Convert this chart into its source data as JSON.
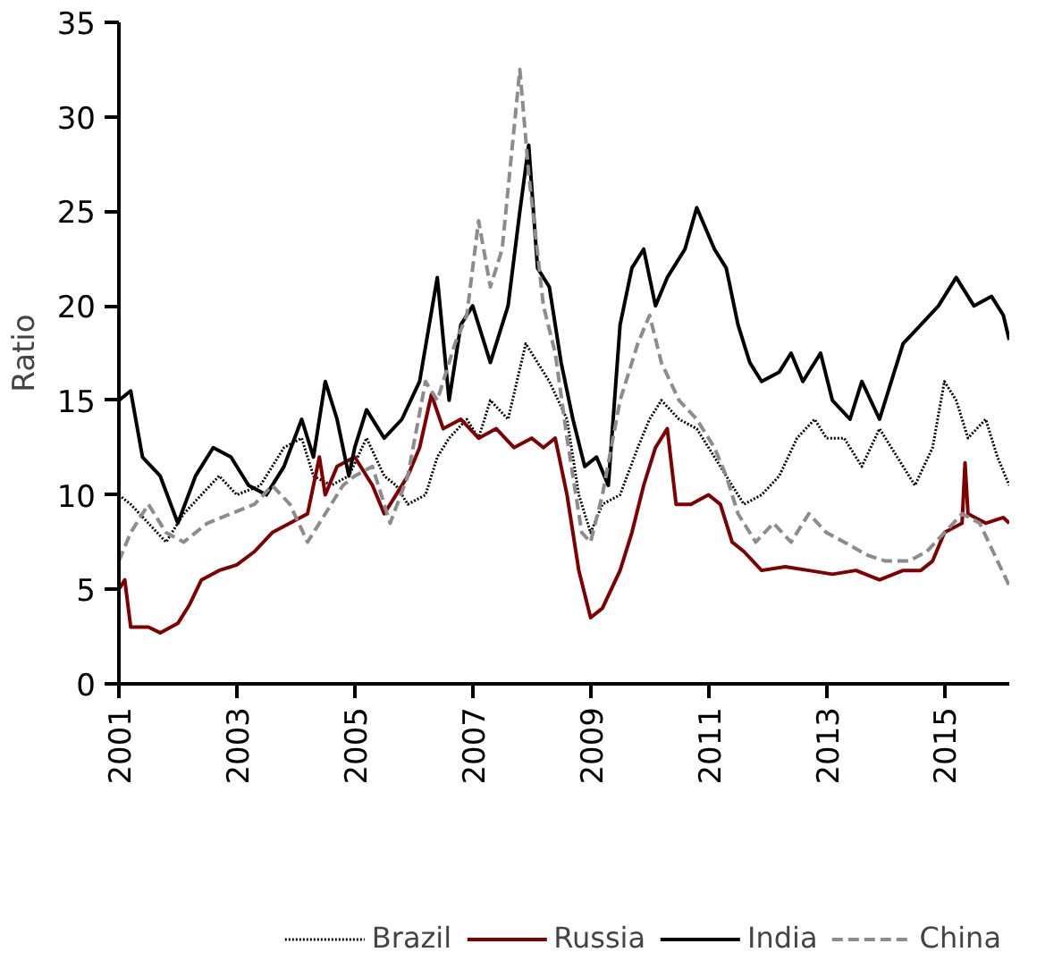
{
  "chart_data": {
    "type": "line",
    "ylabel": "Ratio",
    "xlim": [
      2001,
      2016.1
    ],
    "xticks": [
      2001,
      2003,
      2005,
      2007,
      2009,
      2011,
      2013,
      2015
    ],
    "ylim": [
      0,
      35
    ],
    "yticks": [
      0,
      5,
      10,
      15,
      20,
      25,
      30,
      35
    ],
    "grid": false,
    "legend": "bottom",
    "series": [
      {
        "name": "Brazil",
        "color": "#000000",
        "line_style": "dotted",
        "x": [
          2001.0,
          2001.2,
          2001.5,
          2001.8,
          2002.1,
          2002.4,
          2002.7,
          2003.0,
          2003.4,
          2003.8,
          2004.1,
          2004.3,
          2004.6,
          2004.9,
          2005.2,
          2005.5,
          2005.7,
          2005.9,
          2006.2,
          2006.4,
          2006.6,
          2006.9,
          2007.1,
          2007.3,
          2007.6,
          2007.9,
          2008.1,
          2008.3,
          2008.6,
          2008.8,
          2009.0,
          2009.2,
          2009.5,
          2009.8,
          2010.0,
          2010.2,
          2010.5,
          2010.8,
          2011.0,
          2011.3,
          2011.6,
          2011.9,
          2012.2,
          2012.5,
          2012.8,
          2013.0,
          2013.3,
          2013.6,
          2013.9,
          2014.2,
          2014.5,
          2014.8,
          2015.0,
          2015.2,
          2015.4,
          2015.7,
          2015.9,
          2016.1
        ],
        "values": [
          10,
          9.5,
          8.5,
          7.5,
          9,
          10,
          11,
          10,
          10.5,
          12.5,
          13,
          11,
          10.5,
          11,
          13,
          11,
          10.5,
          9.5,
          10,
          12,
          13,
          14,
          13,
          15,
          14,
          18,
          17,
          16,
          14,
          10,
          8,
          9.5,
          10,
          12.5,
          14,
          15,
          14,
          13.5,
          12.5,
          11,
          9.5,
          10,
          11,
          13,
          14,
          13,
          13,
          11.5,
          13.5,
          12,
          10.5,
          12.5,
          16,
          15,
          13,
          14,
          12,
          10.5
        ]
      },
      {
        "name": "Russia",
        "color": "#7f0000",
        "line_style": "solid",
        "x": [
          2001.0,
          2001.1,
          2001.2,
          2001.5,
          2001.7,
          2002.0,
          2002.2,
          2002.4,
          2002.7,
          2003.0,
          2003.3,
          2003.6,
          2003.9,
          2004.2,
          2004.4,
          2004.5,
          2004.7,
          2005.0,
          2005.3,
          2005.5,
          2005.7,
          2005.9,
          2006.1,
          2006.3,
          2006.5,
          2006.8,
          2007.1,
          2007.4,
          2007.7,
          2008.0,
          2008.2,
          2008.4,
          2008.6,
          2008.8,
          2009.0,
          2009.2,
          2009.5,
          2009.7,
          2009.9,
          2010.1,
          2010.3,
          2010.45,
          2010.7,
          2011.0,
          2011.2,
          2011.4,
          2011.6,
          2011.9,
          2012.3,
          2012.7,
          2013.1,
          2013.5,
          2013.9,
          2014.3,
          2014.6,
          2014.8,
          2015.0,
          2015.3,
          2015.35,
          2015.4,
          2015.7,
          2016.0,
          2016.1
        ],
        "values": [
          5,
          5.5,
          3,
          3,
          2.7,
          3.2,
          4.2,
          5.5,
          6,
          6.3,
          7,
          8,
          8.5,
          9,
          12,
          10,
          11.5,
          12,
          10.5,
          9,
          10,
          11,
          12.5,
          15.3,
          13.5,
          14,
          13,
          13.5,
          12.5,
          13,
          12.5,
          13,
          10,
          6,
          3.5,
          4,
          6,
          8,
          10.5,
          12.5,
          13.5,
          9.5,
          9.5,
          10,
          9.5,
          7.5,
          7,
          6,
          6.2,
          6,
          5.8,
          6,
          5.5,
          6,
          6,
          6.5,
          8,
          8.5,
          11.7,
          9,
          8.5,
          8.8,
          8.5
        ]
      },
      {
        "name": "India",
        "color": "#000000",
        "line_style": "solid",
        "x": [
          2001.0,
          2001.2,
          2001.4,
          2001.7,
          2002.0,
          2002.3,
          2002.6,
          2002.9,
          2003.2,
          2003.5,
          2003.8,
          2004.1,
          2004.3,
          2004.5,
          2004.7,
          2004.9,
          2005.0,
          2005.2,
          2005.5,
          2005.8,
          2006.1,
          2006.4,
          2006.6,
          2006.8,
          2007.0,
          2007.3,
          2007.6,
          2007.8,
          2007.95,
          2008.1,
          2008.3,
          2008.5,
          2008.7,
          2008.9,
          2009.1,
          2009.3,
          2009.5,
          2009.7,
          2009.9,
          2010.1,
          2010.3,
          2010.6,
          2010.8,
          2011.1,
          2011.3,
          2011.5,
          2011.7,
          2011.9,
          2012.2,
          2012.4,
          2012.6,
          2012.9,
          2013.1,
          2013.4,
          2013.6,
          2013.9,
          2014.1,
          2014.3,
          2014.6,
          2014.9,
          2015.2,
          2015.5,
          2015.8,
          2016.0,
          2016.1
        ],
        "values": [
          15,
          15.5,
          12,
          11,
          8.5,
          11,
          12.5,
          12,
          10.5,
          10,
          11.5,
          14,
          12,
          16,
          14,
          11,
          12.5,
          14.5,
          13,
          14,
          16,
          21.5,
          15,
          19,
          20,
          17,
          20,
          25,
          28.5,
          22,
          21,
          17,
          14,
          11.5,
          12,
          10.5,
          19,
          22,
          23,
          20,
          21.5,
          23,
          25.2,
          23,
          22,
          19,
          17,
          16,
          16.5,
          17.5,
          16,
          17.5,
          15,
          14,
          16,
          14,
          16,
          18,
          19,
          20,
          21.5,
          20,
          20.5,
          19.5,
          18.2
        ]
      },
      {
        "name": "China",
        "color": "#8c8c8c",
        "line_style": "dashed",
        "x": [
          2001.0,
          2001.2,
          2001.5,
          2001.8,
          2002.1,
          2002.5,
          2002.9,
          2003.3,
          2003.6,
          2003.9,
          2004.2,
          2004.5,
          2004.8,
          2005.0,
          2005.3,
          2005.6,
          2005.9,
          2006.2,
          2006.4,
          2006.7,
          2006.9,
          2007.1,
          2007.3,
          2007.5,
          2007.8,
          2007.95,
          2008.2,
          2008.4,
          2008.6,
          2008.85,
          2009.0,
          2009.2,
          2009.5,
          2009.8,
          2010.0,
          2010.2,
          2010.5,
          2010.8,
          2011.1,
          2011.3,
          2011.5,
          2011.8,
          2012.1,
          2012.4,
          2012.7,
          2013.0,
          2013.3,
          2013.7,
          2014.0,
          2014.4,
          2014.7,
          2015.0,
          2015.3,
          2015.6,
          2015.9,
          2016.1
        ],
        "values": [
          6.5,
          8,
          9.5,
          8,
          7.5,
          8.5,
          9,
          9.5,
          10.5,
          9.5,
          7.5,
          9,
          10.5,
          11,
          11.5,
          8.5,
          11,
          16,
          15,
          18,
          19.5,
          24.5,
          21,
          23,
          32.5,
          27,
          20,
          17.5,
          13,
          8,
          7.5,
          10,
          15,
          18,
          19.5,
          17,
          15,
          14,
          12.5,
          11,
          9,
          7.5,
          8.5,
          7.5,
          9,
          8,
          7.5,
          6.8,
          6.5,
          6.5,
          7,
          8,
          9,
          8.5,
          6.5,
          5.2
        ]
      }
    ]
  }
}
